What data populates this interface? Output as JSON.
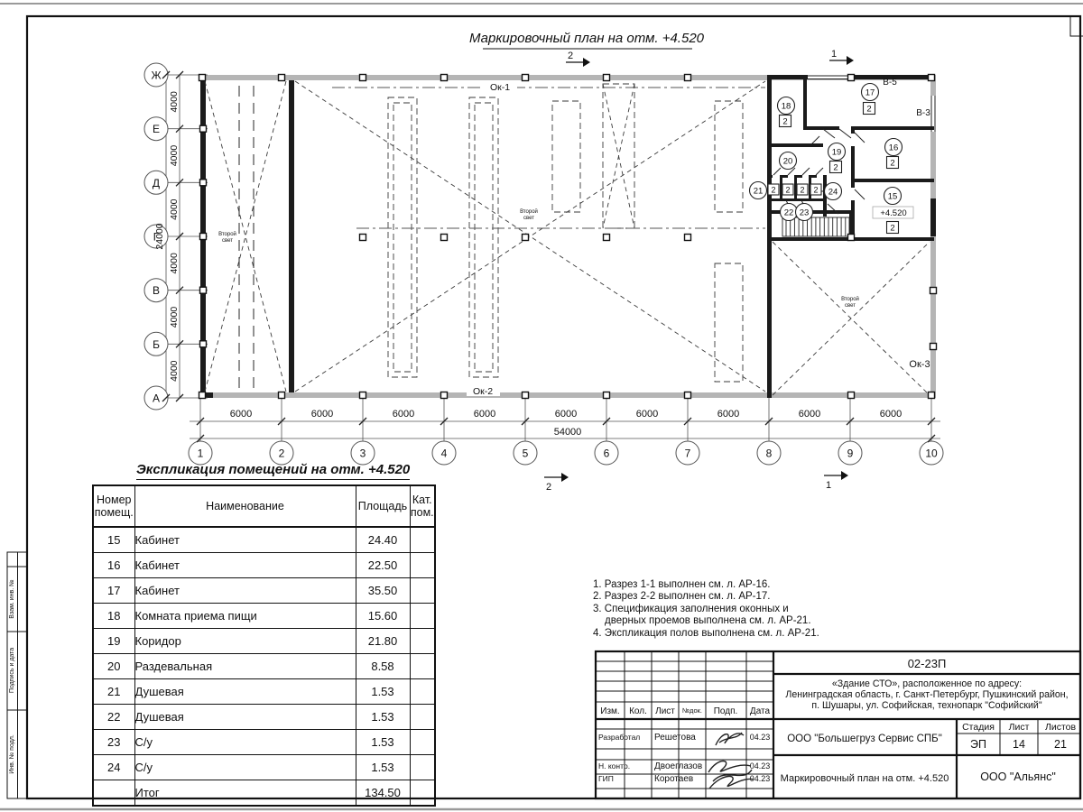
{
  "colors": {
    "wall_gray": "#b5b5b5",
    "line_black": "#1b1b1b"
  },
  "plan": {
    "title": "Маркировочный план на отм. +4.520",
    "axis_letters": [
      "Ж",
      "Е",
      "Д",
      "Г",
      "В",
      "Б",
      "А"
    ],
    "axis_numbers": [
      "1",
      "2",
      "3",
      "4",
      "5",
      "6",
      "7",
      "8",
      "9",
      "10"
    ],
    "dim_vertical_segment": "4000",
    "dim_vertical_total": "24000",
    "dim_horizontal_segment": "6000",
    "dim_horizontal_total": "54000",
    "window_labels": {
      "ok1": "Ок-1",
      "ok2": "Ок-2",
      "ok3": "Ок-3",
      "v5": "В-5",
      "v3": "В-3"
    },
    "second_light": {
      "line1": "Второй",
      "line2": "свет"
    },
    "elevation_mark": "+4.520",
    "section_marks": {
      "s1": "1",
      "s2": "2"
    },
    "rooms": [
      {
        "num": "15",
        "cat": "2"
      },
      {
        "num": "16",
        "cat": "2"
      },
      {
        "num": "17",
        "cat": "2"
      },
      {
        "num": "18",
        "cat": "2"
      },
      {
        "num": "19",
        "cat": "2"
      },
      {
        "num": "20",
        "cat": ""
      },
      {
        "num": "21",
        "cat": ""
      },
      {
        "num": "22",
        "cat": ""
      },
      {
        "num": "23",
        "cat": ""
      },
      {
        "num": "24",
        "cat": ""
      }
    ],
    "cell_cats": [
      "2",
      "2",
      "2",
      "2"
    ]
  },
  "schedule": {
    "title": "Экспликация помещений на отм. +4.520",
    "headers": [
      "Номер помещ.",
      "Наименование",
      "Площадь",
      "Кат. пом."
    ],
    "rows": [
      [
        "15",
        "Кабинет",
        "24.40",
        ""
      ],
      [
        "16",
        "Кабинет",
        "22.50",
        ""
      ],
      [
        "17",
        "Кабинет",
        "35.50",
        ""
      ],
      [
        "18",
        "Комната приема пищи",
        "15.60",
        ""
      ],
      [
        "19",
        "Коридор",
        "21.80",
        ""
      ],
      [
        "20",
        "Раздевальная",
        "8.58",
        ""
      ],
      [
        "21",
        "Душевая",
        "1.53",
        ""
      ],
      [
        "22",
        "Душевая",
        "1.53",
        ""
      ],
      [
        "23",
        "С/у",
        "1.53",
        ""
      ],
      [
        "24",
        "С/у",
        "1.53",
        ""
      ]
    ],
    "total_label": "Итог",
    "total_value": "134.50"
  },
  "notes": [
    "1. Разрез 1-1 выполнен см. л. АР-16.",
    "2. Разрез 2-2 выполнен см. л. АР-17.",
    "3. Спецификация заполнения оконных и дверных проемов выполнена см. л. АР-21.",
    "4. Экспликация полов выполнена см. л. АР-21."
  ],
  "titleblock": {
    "doc_code": "02-23П",
    "address_lines": [
      "«Здание СТО», расположенное по адресу:",
      "Ленинградская область, г. Санкт-Петербург, Пушкинский район,",
      "п. Шушары, ул. Софийская, технопарк \"Софийский\""
    ],
    "columns": [
      "Изм.",
      "Кол.",
      "Лист",
      "№док.",
      "Подп.",
      "Дата"
    ],
    "roles": [
      {
        "role": "Разработал",
        "name": "Решетова",
        "date": "04.23"
      },
      {
        "role": "Н. контр.",
        "name": "Двоеглазов",
        "date": "04.23"
      },
      {
        "role": "ГИП",
        "name": "Коротаев",
        "date": "04.23"
      }
    ],
    "org": "ООО \"Большегруз Сервис СПБ\"",
    "stage_headers": [
      "Стадия",
      "Лист",
      "Листов"
    ],
    "stage": "ЭП",
    "sheet": "14",
    "sheets_total": "21",
    "sheet_title": "Маркировочный план на отм. +4.520",
    "company": "ООО \"Альянс\""
  },
  "sidebar": {
    "boxes": [
      "Взам. инв. №",
      "Подпись и дата",
      "Инв. № подл."
    ]
  }
}
